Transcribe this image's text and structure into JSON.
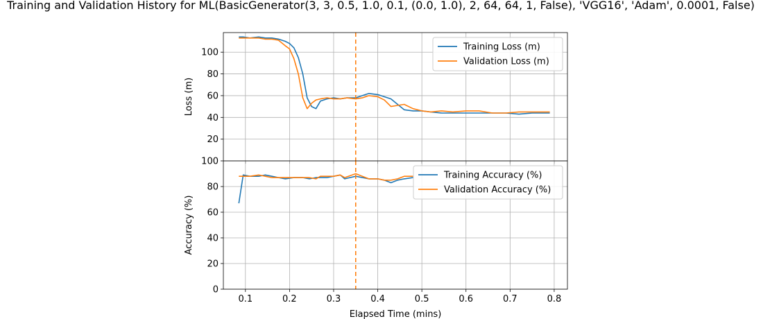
{
  "title": "Training and Validation History for ML(BasicGenerator(3, 3, 0.5, 1.0, 0.1, (0.0, 1.0), 2, 64, 64, 1, False), 'VGG16', 'Adam', 0.0001, False)",
  "colors": {
    "training": "#1f77b4",
    "validation": "#ff7f0e",
    "grid": "#b0b0b0",
    "marker_line": "#ff7f0e"
  },
  "chart_data": [
    {
      "type": "line",
      "name": "loss",
      "xlabel": "",
      "ylabel": "Loss (m)",
      "xlim": [
        0.05,
        0.83
      ],
      "ylim": [
        0,
        118
      ],
      "yticks": [
        20,
        40,
        60,
        80,
        100
      ],
      "grid": true,
      "legend_position": "top-right",
      "vline_x": 0.35,
      "series": [
        {
          "name": "Training Loss (m)",
          "color": "#1f77b4",
          "x": [
            0.085,
            0.095,
            0.11,
            0.13,
            0.145,
            0.16,
            0.175,
            0.19,
            0.2,
            0.21,
            0.22,
            0.23,
            0.24,
            0.25,
            0.26,
            0.27,
            0.285,
            0.3,
            0.315,
            0.33,
            0.35,
            0.365,
            0.38,
            0.4,
            0.415,
            0.43,
            0.445,
            0.46,
            0.48,
            0.5,
            0.52,
            0.545,
            0.57,
            0.6,
            0.63,
            0.66,
            0.69,
            0.72,
            0.75,
            0.79
          ],
          "values": [
            114,
            114,
            113,
            114,
            113,
            113,
            112,
            110,
            108,
            104,
            95,
            80,
            58,
            50,
            48,
            55,
            57,
            58,
            57,
            58,
            58,
            60,
            62,
            61,
            59,
            57,
            52,
            47,
            46,
            46,
            45,
            44,
            44,
            44,
            44,
            44,
            44,
            43,
            44,
            44
          ]
        },
        {
          "name": "Validation Loss (m)",
          "color": "#ff7f0e",
          "x": [
            0.085,
            0.095,
            0.11,
            0.13,
            0.145,
            0.16,
            0.175,
            0.19,
            0.2,
            0.21,
            0.22,
            0.23,
            0.24,
            0.25,
            0.26,
            0.27,
            0.285,
            0.3,
            0.315,
            0.33,
            0.35,
            0.365,
            0.38,
            0.4,
            0.415,
            0.43,
            0.445,
            0.46,
            0.48,
            0.5,
            0.52,
            0.545,
            0.57,
            0.6,
            0.63,
            0.66,
            0.69,
            0.72,
            0.75,
            0.79
          ],
          "values": [
            113,
            113,
            113,
            113,
            112,
            112,
            111,
            106,
            103,
            94,
            80,
            58,
            48,
            53,
            56,
            57,
            58,
            57,
            57,
            58,
            57,
            58,
            60,
            59,
            56,
            50,
            51,
            52,
            48,
            46,
            45,
            46,
            45,
            46,
            46,
            44,
            44,
            45,
            45,
            45
          ]
        }
      ]
    },
    {
      "type": "line",
      "name": "accuracy",
      "xlabel": "Elapsed Time (mins)",
      "ylabel": "Accuracy (%)",
      "xlim": [
        0.05,
        0.83
      ],
      "ylim": [
        0,
        100
      ],
      "yticks": [
        0,
        20,
        40,
        60,
        80,
        100
      ],
      "xticks": [
        0.1,
        0.2,
        0.3,
        0.4,
        0.5,
        0.6,
        0.7,
        0.8
      ],
      "grid": true,
      "legend_position": "top-right",
      "vline_x": 0.35,
      "series": [
        {
          "name": "Training Accuracy (%)",
          "color": "#1f77b4",
          "x": [
            0.085,
            0.095,
            0.11,
            0.13,
            0.145,
            0.16,
            0.175,
            0.19,
            0.21,
            0.23,
            0.245,
            0.26,
            0.27,
            0.285,
            0.3,
            0.315,
            0.325,
            0.35,
            0.38,
            0.4,
            0.415,
            0.43,
            0.445,
            0.46,
            0.48
          ],
          "values": [
            67,
            89,
            88,
            88,
            89,
            88,
            87,
            86,
            87,
            87,
            86,
            87,
            87,
            87,
            88,
            89,
            86,
            88,
            86,
            86,
            85,
            83,
            85,
            86,
            87
          ]
        },
        {
          "name": "Validation Accuracy (%)",
          "color": "#ff7f0e",
          "x": [
            0.085,
            0.095,
            0.11,
            0.13,
            0.145,
            0.16,
            0.175,
            0.19,
            0.21,
            0.23,
            0.245,
            0.26,
            0.27,
            0.285,
            0.3,
            0.315,
            0.325,
            0.35,
            0.38,
            0.4,
            0.415,
            0.43,
            0.445,
            0.46,
            0.48
          ],
          "values": [
            88,
            88,
            88,
            89,
            88,
            87,
            87,
            87,
            87,
            87,
            87,
            86,
            88,
            88,
            88,
            89,
            87,
            90,
            86,
            86,
            85,
            85,
            86,
            88,
            88
          ]
        }
      ]
    }
  ]
}
